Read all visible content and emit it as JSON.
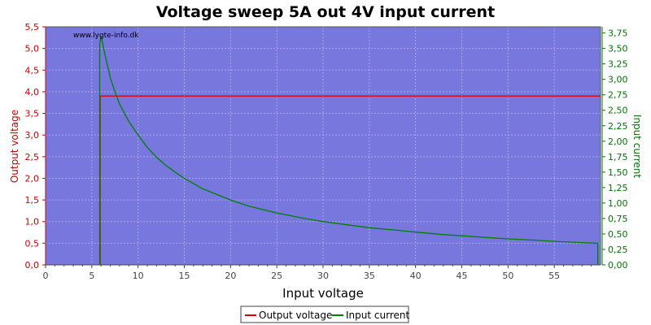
{
  "colors": {
    "plot_bg": "#7777dd",
    "grid": "#a9a9ee",
    "left_axis": "#cc0000",
    "right_axis": "#007700",
    "output_voltage": "#dd0000",
    "input_current": "#008000"
  },
  "watermark": "www.lygte-info.dk",
  "chart_data": {
    "type": "line",
    "title": "Voltage sweep 5A out 4V input current",
    "xlabel": "Input voltage",
    "ylabel": "Output voltage",
    "y2label": "Input current",
    "xlim": [
      0,
      60
    ],
    "ylim": [
      0,
      5.5
    ],
    "y2lim": [
      0,
      3.85
    ],
    "grid": true,
    "legend_position": "bottom-center",
    "x_ticks": [
      "0",
      "5",
      "10",
      "15",
      "20",
      "25",
      "30",
      "35",
      "40",
      "45",
      "50",
      "55"
    ],
    "y_ticks": [
      "0,0",
      "0,5",
      "1,0",
      "1,5",
      "2,0",
      "2,5",
      "3,0",
      "3,5",
      "4,0",
      "4,5",
      "5,0",
      "5,5"
    ],
    "y2_ticks": [
      "0,00",
      "0,25",
      "0,50",
      "0,75",
      "1,00",
      "1,25",
      "1,50",
      "1,75",
      "2,00",
      "2,25",
      "2,50",
      "2,75",
      "3,00",
      "3,25",
      "3,50",
      "3,75"
    ],
    "series": [
      {
        "name": "Output voltage",
        "axis": "left",
        "x": [
          5.9,
          5.9,
          6.0,
          60
        ],
        "y": [
          0.0,
          3.9,
          3.9,
          3.9
        ]
      },
      {
        "name": "Input current",
        "axis": "right",
        "x": [
          5.85,
          5.85,
          6.0,
          6.5,
          7,
          7.5,
          8,
          9,
          10,
          11,
          12,
          13,
          14,
          15,
          17,
          20,
          22,
          25,
          28,
          30,
          33,
          35,
          38,
          40,
          43,
          45,
          48,
          50,
          53,
          55,
          58,
          59.7,
          59.7
        ],
        "y": [
          0.0,
          3.58,
          3.7,
          3.35,
          3.02,
          2.8,
          2.6,
          2.32,
          2.1,
          1.9,
          1.74,
          1.61,
          1.5,
          1.4,
          1.23,
          1.05,
          0.95,
          0.84,
          0.75,
          0.7,
          0.64,
          0.6,
          0.56,
          0.53,
          0.49,
          0.47,
          0.44,
          0.42,
          0.4,
          0.38,
          0.36,
          0.35,
          0.0
        ]
      }
    ]
  }
}
